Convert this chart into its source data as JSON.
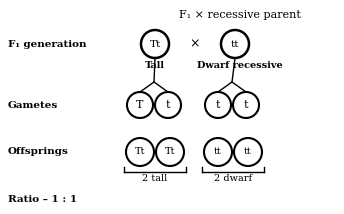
{
  "title": "F₁ × recessive parent",
  "f1_label": "F₁ generation",
  "gametes_label": "Gametes",
  "offsprings_label": "Offsprings",
  "ratio_label": "Ratio – 1 : 1",
  "tall_label": "Tall",
  "dwarf_label": "Dwarf recessive",
  "tall_count": "2 tall",
  "dwarf_count": "2 dwarf",
  "cross_symbol": "×",
  "parent1_text": "Tt",
  "parent2_text": "tt",
  "gamete1a": "T",
  "gamete1b": "t",
  "gamete2a": "t",
  "gamete2b": "t",
  "offspring1a": "Tt",
  "offspring1b": "Tt",
  "offspring2a": "tt",
  "offspring2b": "tt",
  "bg_color": "#ffffff",
  "circle_color": "#000000",
  "text_color": "#000000"
}
